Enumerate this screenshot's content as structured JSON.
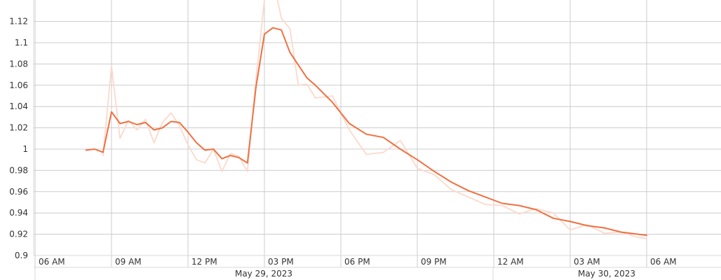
{
  "chart_data": {
    "type": "line",
    "title": "",
    "xlabel": "",
    "ylabel": "",
    "ylim": [
      0.9,
      1.125
    ],
    "y_ticks": [
      "0.9",
      "0.92",
      "0.94",
      "0.96",
      "0.98",
      "1",
      "1.02",
      "1.04",
      "1.06",
      "1.08",
      "1.1",
      "1.12"
    ],
    "x_ticks": [
      "06 AM",
      "09 AM",
      "12 PM",
      "03 PM",
      "06 PM",
      "09 PM",
      "12 AM",
      "03 AM",
      "06 AM"
    ],
    "date_labels": [
      "May 29, 2023",
      "May 30, 2023"
    ],
    "grid": true,
    "colors": {
      "main": "#f07040",
      "secondary": "#fcd9cc",
      "grid": "#cccccc",
      "axis": "#d8d8d8"
    },
    "series": [
      {
        "x": [
          "2023-05-29 08:00",
          "2023-05-29 08:20",
          "2023-05-29 08:40",
          "2023-05-29 09:00",
          "2023-05-29 09:20",
          "2023-05-29 09:40",
          "2023-05-29 10:00",
          "2023-05-29 10:20",
          "2023-05-29 10:40",
          "2023-05-29 11:00",
          "2023-05-29 11:20",
          "2023-05-29 11:40",
          "2023-05-29 12:00",
          "2023-05-29 12:20",
          "2023-05-29 12:40",
          "2023-05-29 13:00",
          "2023-05-29 13:20",
          "2023-05-29 13:40",
          "2023-05-29 14:00",
          "2023-05-29 14:20",
          "2023-05-29 14:40",
          "2023-05-29 15:00",
          "2023-05-29 15:20",
          "2023-05-29 15:40",
          "2023-05-29 16:00",
          "2023-05-29 16:20",
          "2023-05-29 16:40",
          "2023-05-29 17:00",
          "2023-05-29 17:40",
          "2023-05-29 18:20",
          "2023-05-29 19:00",
          "2023-05-29 19:40",
          "2023-05-29 20:20",
          "2023-05-29 21:00",
          "2023-05-29 21:40",
          "2023-05-29 22:20",
          "2023-05-29 23:00",
          "2023-05-29 23:40",
          "2023-05-30 00:20",
          "2023-05-30 01:00",
          "2023-05-30 01:40",
          "2023-05-30 02:20",
          "2023-05-30 03:00",
          "2023-05-30 03:40",
          "2023-05-30 04:20",
          "2023-05-30 05:00",
          "2023-05-30 05:40",
          "2023-05-30 06:00"
        ],
        "values": [
          0.999,
          1.0,
          0.997,
          1.035,
          1.024,
          1.026,
          1.023,
          1.025,
          1.018,
          1.02,
          1.026,
          1.025,
          1.016,
          1.006,
          0.999,
          1.0,
          0.991,
          0.994,
          0.992,
          0.987,
          1.058,
          1.108,
          1.114,
          1.112,
          1.091,
          1.079,
          1.067,
          1.06,
          1.044,
          1.024,
          1.014,
          1.011,
          1.0,
          0.99,
          0.979,
          0.969,
          0.961,
          0.955,
          0.949,
          0.947,
          0.943,
          0.935,
          0.932,
          0.928,
          0.926,
          0.922,
          0.92,
          0.919
        ]
      },
      {
        "x": [
          "2023-05-29 08:40",
          "2023-05-29 09:00",
          "2023-05-29 09:20",
          "2023-05-29 09:40",
          "2023-05-29 10:00",
          "2023-05-29 10:20",
          "2023-05-29 10:40",
          "2023-05-29 11:00",
          "2023-05-29 11:20",
          "2023-05-29 11:40",
          "2023-05-29 12:00",
          "2023-05-29 12:20",
          "2023-05-29 12:40",
          "2023-05-29 13:00",
          "2023-05-29 13:20",
          "2023-05-29 13:40",
          "2023-05-29 14:00",
          "2023-05-29 14:20",
          "2023-05-29 14:40",
          "2023-05-29 15:00",
          "2023-05-29 15:20",
          "2023-05-29 15:40",
          "2023-05-29 16:00",
          "2023-05-29 16:20",
          "2023-05-29 16:40",
          "2023-05-29 17:00",
          "2023-05-29 17:40",
          "2023-05-29 18:20",
          "2023-05-29 19:00",
          "2023-05-29 19:40",
          "2023-05-29 20:20",
          "2023-05-29 21:00",
          "2023-05-29 21:40",
          "2023-05-29 22:20",
          "2023-05-29 23:00",
          "2023-05-29 23:40",
          "2023-05-30 00:20",
          "2023-05-30 01:00",
          "2023-05-30 01:40",
          "2023-05-30 02:20",
          "2023-05-30 03:00",
          "2023-05-30 03:40",
          "2023-05-30 04:20",
          "2023-05-30 05:00",
          "2023-05-30 05:40",
          "2023-05-30 06:00"
        ],
        "values": [
          0.994,
          1.078,
          1.01,
          1.027,
          1.018,
          1.028,
          1.006,
          1.025,
          1.034,
          1.022,
          1.004,
          0.99,
          0.987,
          1.0,
          0.979,
          0.996,
          0.993,
          0.979,
          1.065,
          1.14,
          1.16,
          1.123,
          1.113,
          1.06,
          1.061,
          1.048,
          1.05,
          1.018,
          0.995,
          0.997,
          1.008,
          0.982,
          0.976,
          0.962,
          0.955,
          0.948,
          0.947,
          0.939,
          0.944,
          0.94,
          0.924,
          0.929,
          0.921,
          0.922,
          0.917,
          0.916
        ]
      }
    ]
  }
}
